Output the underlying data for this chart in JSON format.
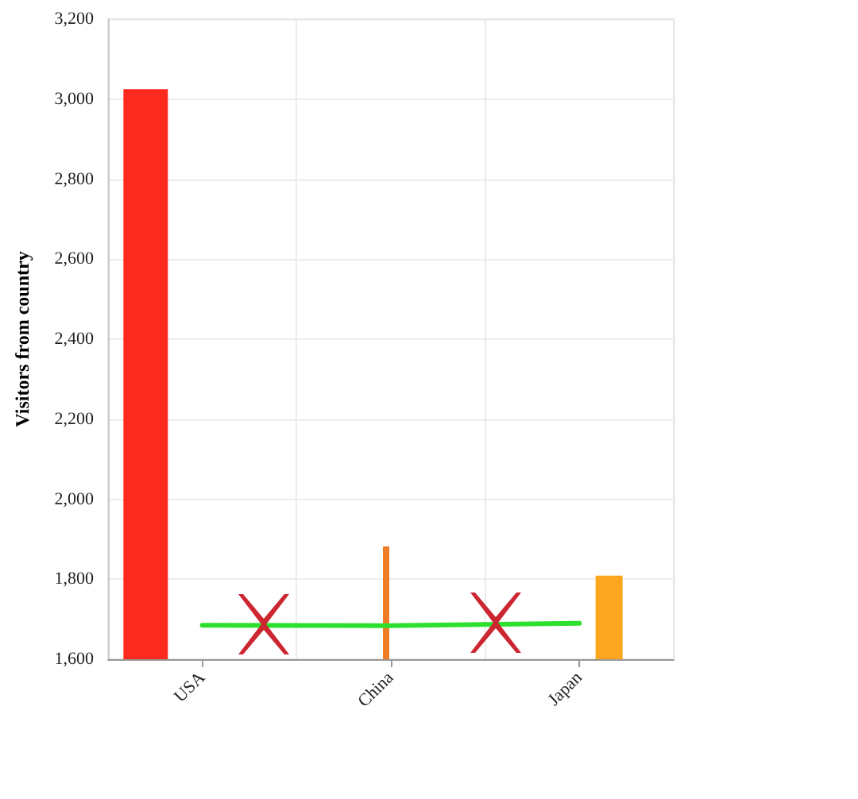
{
  "chart_data": {
    "type": "bar",
    "ylabel": "Visitors from country",
    "categories": [
      "USA",
      "China",
      "Japan"
    ],
    "series": [
      {
        "color": "#fc2a1e",
        "values": [
          3025,
          null,
          null
        ]
      },
      {
        "color": "#ee7d25",
        "values": [
          null,
          1882,
          null
        ]
      },
      {
        "color": "#fca61f",
        "values": [
          null,
          null,
          1809
        ]
      },
      {
        "type": "line",
        "color": "#2ee02e",
        "values": [
          1685,
          1684,
          1690
        ]
      }
    ],
    "ylim": [
      1600,
      3200
    ],
    "yticks": [
      {
        "value": 1600,
        "label": "1,600"
      },
      {
        "value": 1800,
        "label": "1,800"
      },
      {
        "value": 2000,
        "label": "2,000"
      },
      {
        "value": 2200,
        "label": "2,200"
      },
      {
        "value": 2400,
        "label": "2,400"
      },
      {
        "value": 2600,
        "label": "2,600"
      },
      {
        "value": 2800,
        "label": "2,800"
      },
      {
        "value": 3000,
        "label": "3,000"
      },
      {
        "value": 3200,
        "label": "3,200"
      }
    ],
    "grid": true,
    "marker": "none"
  }
}
